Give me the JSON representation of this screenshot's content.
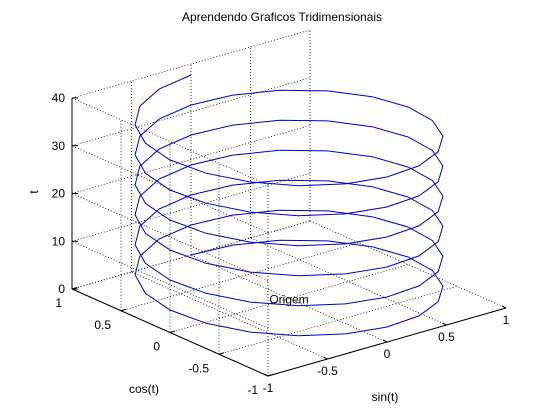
{
  "chart_data": {
    "type": "line3d",
    "title": "Aprendendo Graficos Tridimensionais",
    "xlabel": "sin(t)",
    "ylabel": "cos(t)",
    "zlabel": "t",
    "xlim": [
      -1,
      1
    ],
    "ylim": [
      -1,
      1
    ],
    "zlim": [
      0,
      40
    ],
    "xticks": [
      "-1",
      "-0.5",
      "0",
      "0.5",
      "1"
    ],
    "yticks": [
      "-1",
      "-0.5",
      "0",
      "0.5",
      "1"
    ],
    "zticks": [
      "0",
      "10",
      "20",
      "30",
      "40"
    ],
    "grid": true,
    "annotation": {
      "text": "Origem",
      "x": 0,
      "y": 0,
      "z": 0
    },
    "series": [
      {
        "x_expr": "sin(t)",
        "y_expr": "cos(t)",
        "t_range": [
          0,
          37.7
        ],
        "points": 120,
        "color": "#0000cc"
      }
    ]
  }
}
